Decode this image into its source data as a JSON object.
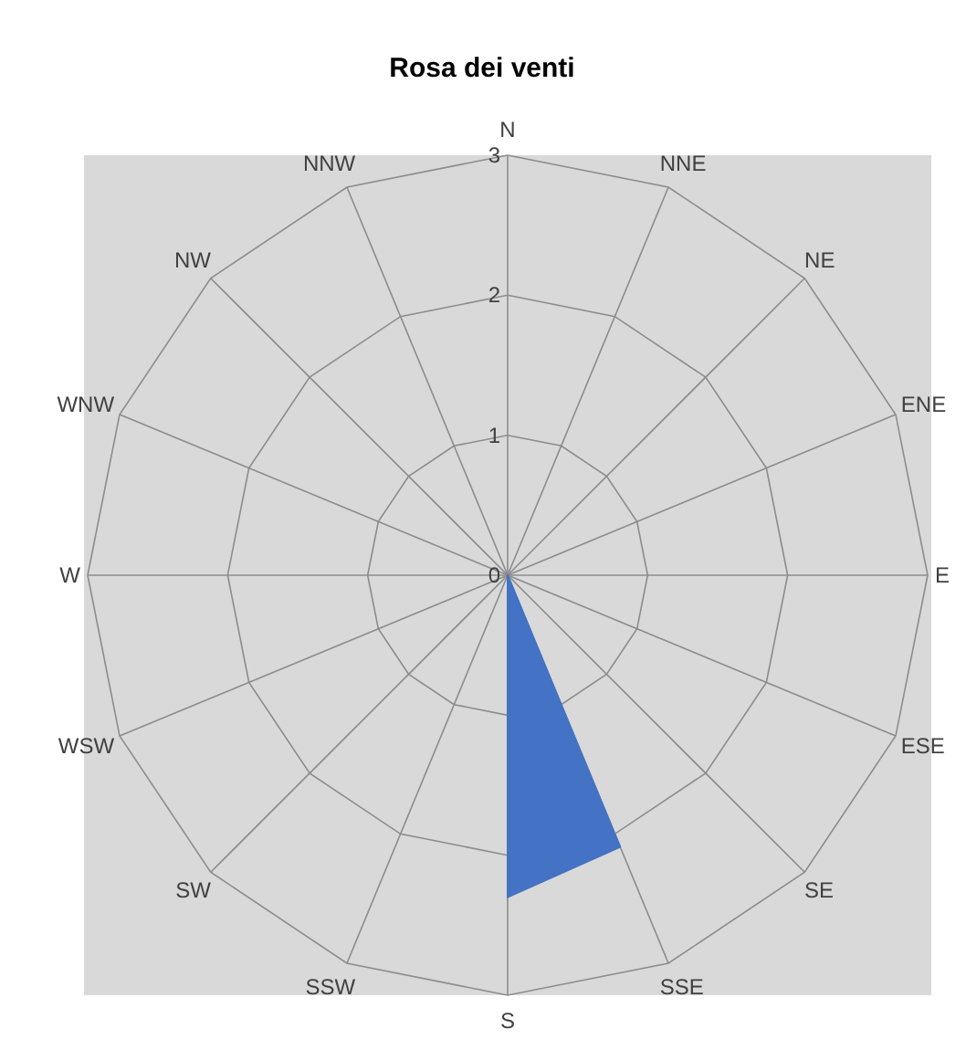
{
  "chart_data": {
    "type": "radar",
    "title": "Rosa dei venti",
    "categories": [
      "N",
      "NNE",
      "NE",
      "ENE",
      "E",
      "ESE",
      "SE",
      "SSE",
      "S",
      "SSW",
      "SW",
      "WSW",
      "W",
      "WNW",
      "NW",
      "NNW"
    ],
    "series": [
      {
        "color": "#4472c4",
        "values": [
          0,
          0,
          0,
          0,
          0,
          0,
          0,
          2.1,
          2.3,
          0,
          0,
          0,
          0,
          0,
          0,
          0
        ]
      }
    ],
    "ylim": [
      0,
      3
    ],
    "yticks": [
      0,
      1,
      2,
      3
    ],
    "grid": true
  }
}
